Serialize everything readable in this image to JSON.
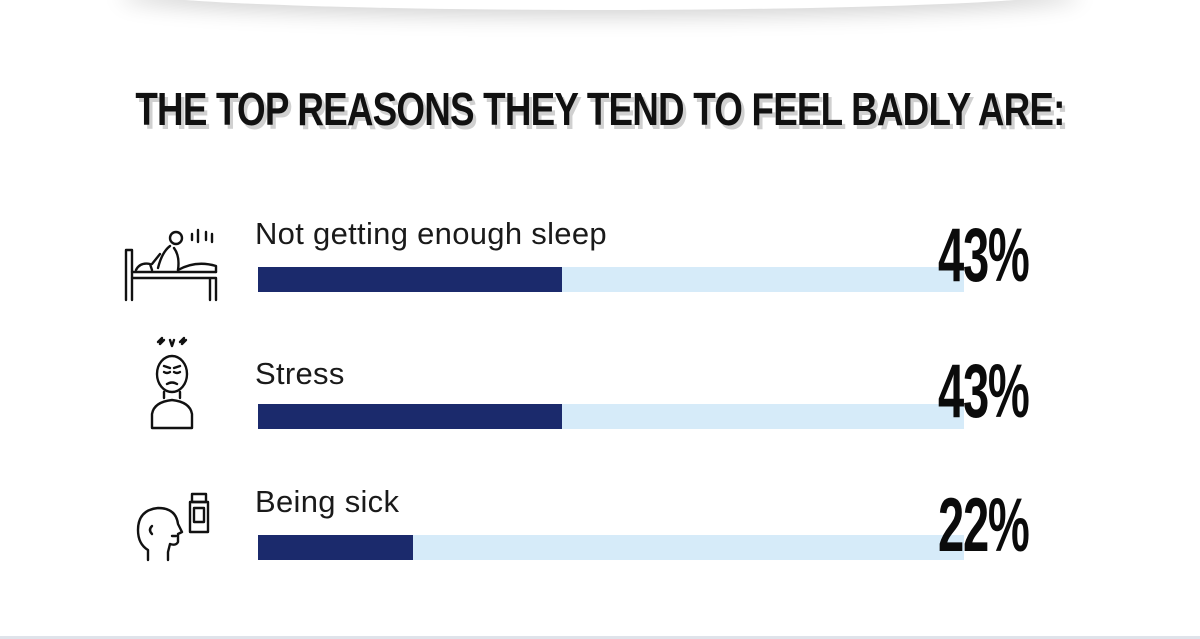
{
  "title": "THE TOP REASONS THEY TEND TO FEEL BADLY ARE:",
  "colors": {
    "bar_fill": "#1b2a6c",
    "bar_track": "#d6ebf9",
    "text": "#111111"
  },
  "chart_data": {
    "type": "bar",
    "orientation": "horizontal",
    "title": "THE TOP REASONS THEY TEND TO FEEL BADLY ARE:",
    "categories": [
      "Not getting enough sleep",
      "Stress",
      "Being sick"
    ],
    "values": [
      43,
      43,
      22
    ],
    "value_labels": [
      "43%",
      "43%",
      "22%"
    ],
    "icons": [
      "bed-sleepless-icon",
      "stressed-person-icon",
      "sick-person-medicine-icon"
    ],
    "xlim": [
      0,
      100
    ],
    "grid": false,
    "legend": "none"
  }
}
